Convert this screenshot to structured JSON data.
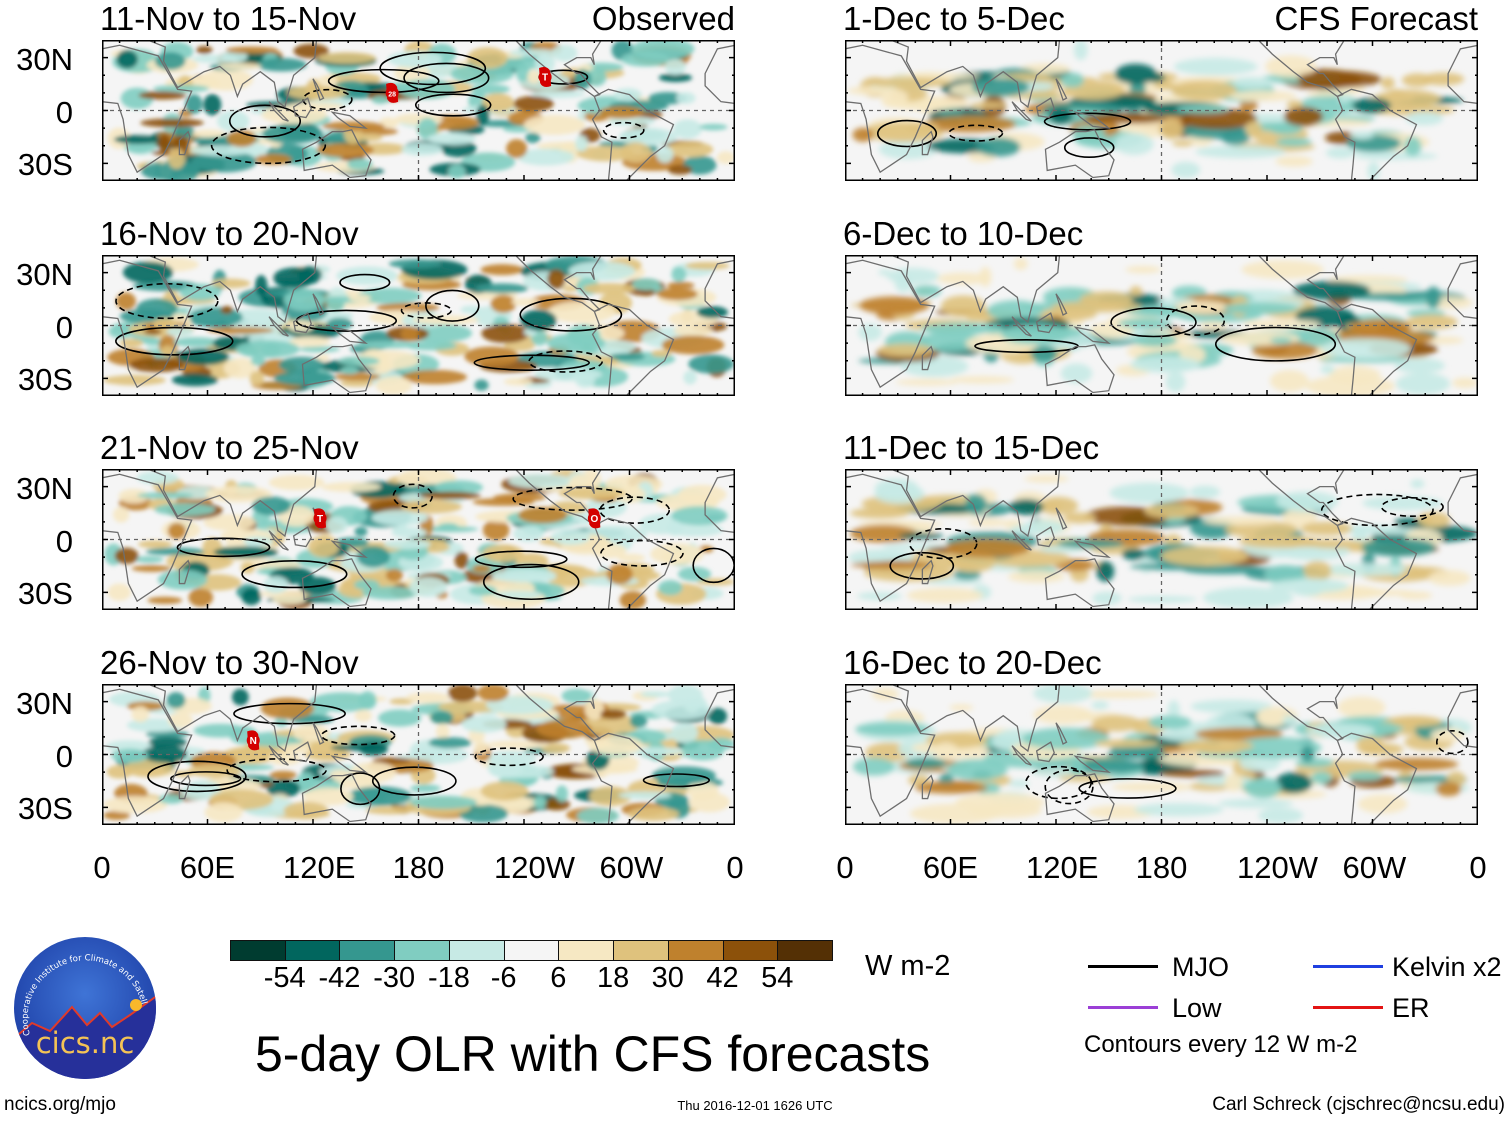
{
  "figure_title": "5-day OLR with CFS forecasts",
  "columns": {
    "left_label": "Observed",
    "right_label": "CFS Forecast"
  },
  "panels": [
    {
      "title": "11-Nov to 15-Nov",
      "kind": "observed",
      "storms": [
        {
          "label": "28",
          "lon": 165,
          "lat": 10
        },
        {
          "label": "T",
          "lon": 252,
          "lat": 19
        }
      ]
    },
    {
      "title": "16-Nov to 20-Nov",
      "kind": "observed",
      "storms": []
    },
    {
      "title": "21-Nov to 25-Nov",
      "kind": "observed",
      "storms": [
        {
          "label": "T",
          "lon": 124,
          "lat": 12
        },
        {
          "label": "O",
          "lon": 280,
          "lat": 12
        }
      ]
    },
    {
      "title": "26-Nov to 30-Nov",
      "kind": "observed",
      "storms": [
        {
          "label": "N",
          "lon": 86,
          "lat": 8
        }
      ]
    },
    {
      "title": "1-Dec to 5-Dec",
      "kind": "forecast",
      "storms": []
    },
    {
      "title": "6-Dec to 10-Dec",
      "kind": "forecast",
      "storms": []
    },
    {
      "title": "11-Dec to 15-Dec",
      "kind": "forecast",
      "storms": []
    },
    {
      "title": "16-Dec to 20-Dec",
      "kind": "forecast",
      "storms": []
    }
  ],
  "lat_labels": [
    "30N",
    "0",
    "30S"
  ],
  "lon_labels": [
    "0",
    "60E",
    "120E",
    "180",
    "120W",
    "60W",
    "0"
  ],
  "colorbar": {
    "colors": [
      "#003c30",
      "#01665e",
      "#35978f",
      "#80cdc1",
      "#c7eae5",
      "#f5f5f5",
      "#f6e8c3",
      "#dfc27d",
      "#bf812d",
      "#8c510a",
      "#543005"
    ],
    "labels": [
      "-54",
      "-42",
      "-30",
      "-18",
      "-6",
      "6",
      "18",
      "30",
      "42",
      "54"
    ],
    "units": "W m-2"
  },
  "legend": {
    "items": [
      {
        "label": "MJO",
        "color": "#000000"
      },
      {
        "label": "Kelvin x2",
        "color": "#1f3fe0"
      },
      {
        "label": "Low",
        "color": "#9b3fd6"
      },
      {
        "label": "ER",
        "color": "#e31414"
      }
    ],
    "contour_note": "Contours every 12 W m-2"
  },
  "logo": {
    "text": "cics.nc",
    "ring_text": "Cooperative Institute for Climate and Satellites"
  },
  "footer": {
    "url": "ncics.org/mjo",
    "timestamp": "Thu 2016-12-01 1626 UTC",
    "author": "Carl Schreck (cjschrec@ncsu.edu)"
  }
}
